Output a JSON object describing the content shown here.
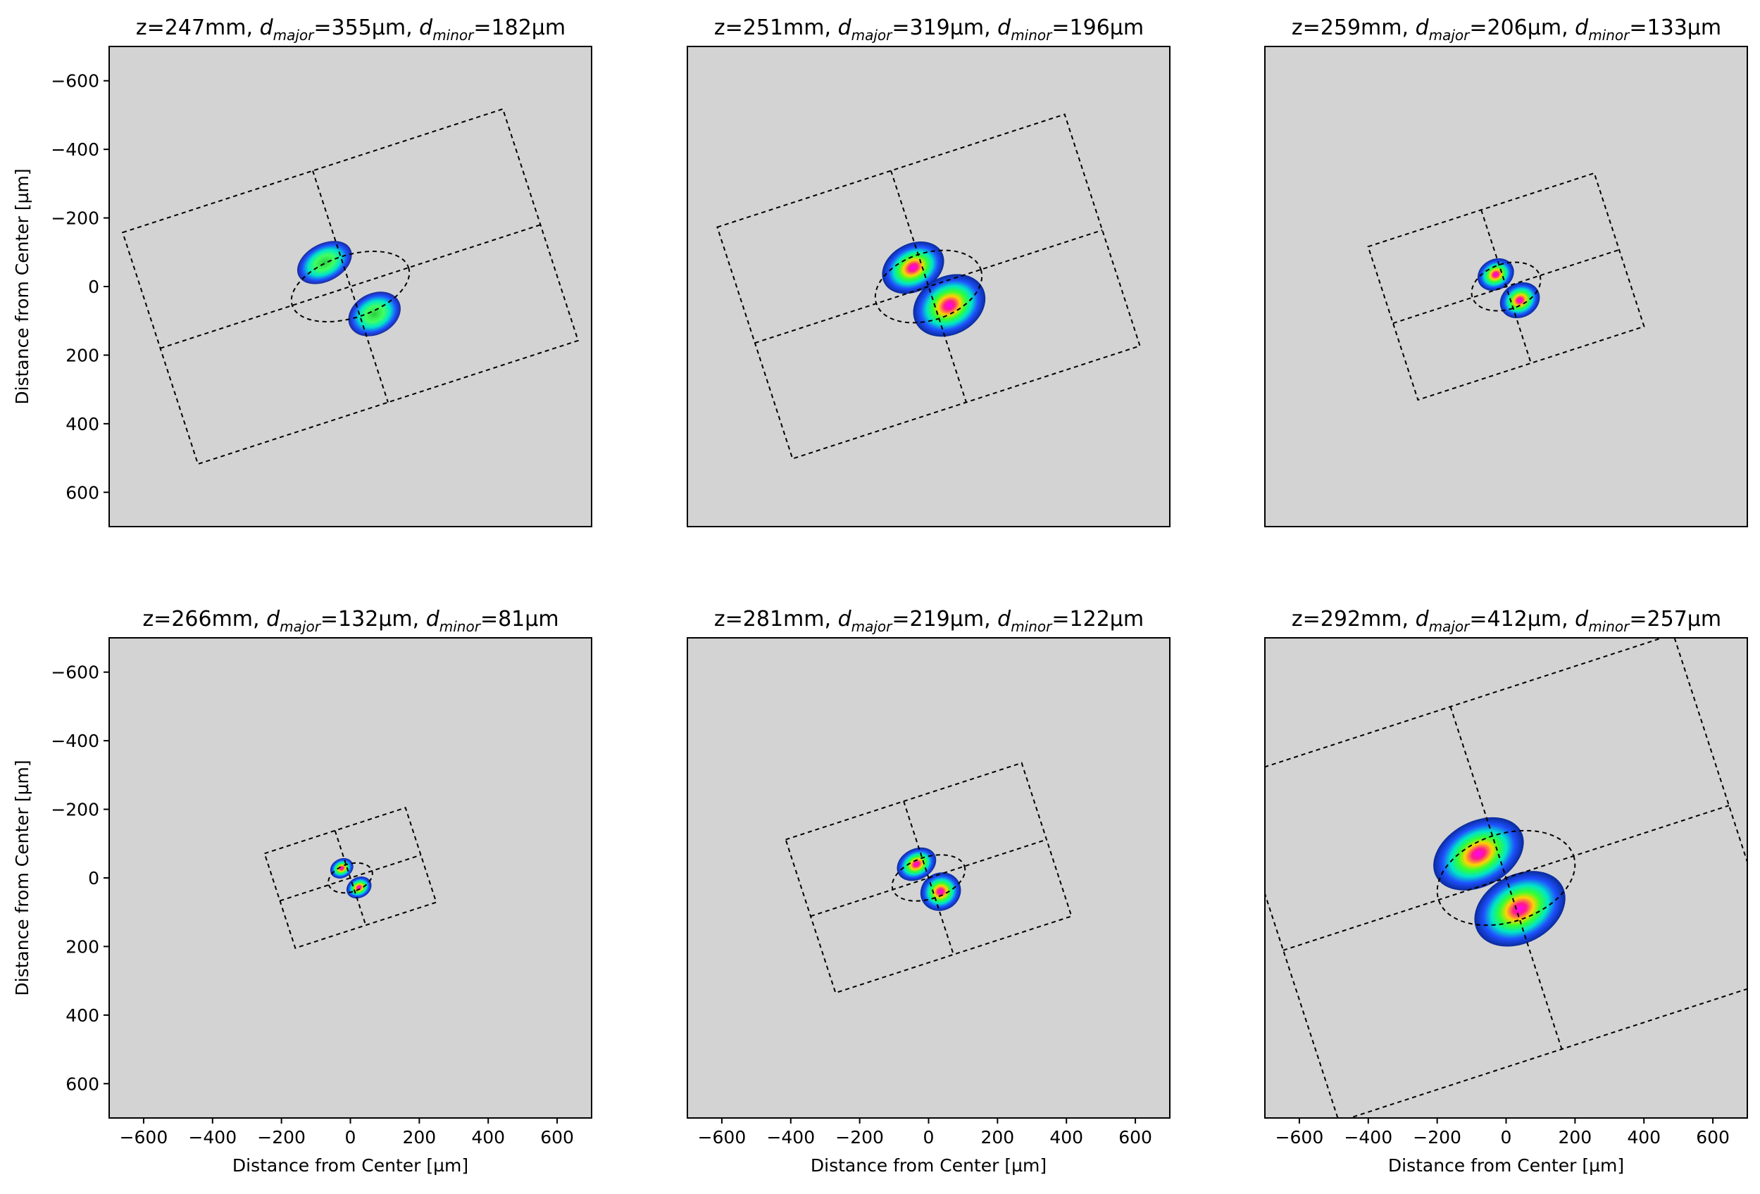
{
  "figure": {
    "xlabel": "Distance from Center [µm]",
    "ylabel": "Distance from Center [µm]"
  },
  "chart_data": [
    {
      "type": "heatmap",
      "title": "z=247mm, d_major=355µm, d_minor=182µm",
      "title_parts": {
        "z": "z=247mm, ",
        "maj_pre": "d",
        "maj_sub": "major",
        "maj_val": "=355µm, ",
        "min_pre": "d",
        "min_sub": "minor",
        "min_val": "=182µm"
      },
      "z_mm": 247,
      "d_major_um": 355,
      "d_minor_um": 182,
      "center_um": [
        0,
        0
      ],
      "angle_deg": -18,
      "rect_half_um": [
        580,
        355
      ],
      "blobs": [
        {
          "x": -75,
          "y": -70,
          "rx": 85,
          "ry": 55,
          "peak": 0.55
        },
        {
          "x": 70,
          "y": 80,
          "rx": 80,
          "ry": 60,
          "peak": 0.55
        }
      ],
      "xlabel": "",
      "ylabel": "Distance from Center [µm]",
      "xlim": [
        -700,
        700
      ],
      "ylim": [
        700,
        -700
      ],
      "xticks": [],
      "yticks": [
        -600,
        -400,
        -200,
        0,
        200,
        400,
        600
      ]
    },
    {
      "type": "heatmap",
      "title": "z=251mm, d_major=319µm, d_minor=196µm",
      "title_parts": {
        "z": "z=251mm, ",
        "maj_pre": "d",
        "maj_sub": "major",
        "maj_val": "=319µm, ",
        "min_pre": "d",
        "min_sub": "minor",
        "min_val": "=196µm"
      },
      "z_mm": 251,
      "d_major_um": 319,
      "d_minor_um": 196,
      "center_um": [
        0,
        0
      ],
      "angle_deg": -18,
      "rect_half_um": [
        530,
        355
      ],
      "blobs": [
        {
          "x": -45,
          "y": -55,
          "rx": 95,
          "ry": 70,
          "peak": 0.85
        },
        {
          "x": 60,
          "y": 55,
          "rx": 110,
          "ry": 85,
          "peak": 0.9
        }
      ],
      "xlabel": "",
      "ylabel": "",
      "xlim": [
        -700,
        700
      ],
      "ylim": [
        700,
        -700
      ],
      "xticks": [],
      "yticks": []
    },
    {
      "type": "heatmap",
      "title": "z=259mm, d_major=206µm, d_minor=133µm",
      "title_parts": {
        "z": "z=259mm, ",
        "maj_pre": "d",
        "maj_sub": "major",
        "maj_val": "=206µm, ",
        "min_pre": "d",
        "min_sub": "minor",
        "min_val": "=133µm"
      },
      "z_mm": 259,
      "d_major_um": 206,
      "d_minor_um": 133,
      "center_um": [
        0,
        0
      ],
      "angle_deg": -18,
      "rect_half_um": [
        345,
        235
      ],
      "blobs": [
        {
          "x": -30,
          "y": -35,
          "rx": 55,
          "ry": 45,
          "peak": 0.85
        },
        {
          "x": 40,
          "y": 40,
          "rx": 60,
          "ry": 50,
          "peak": 0.85
        }
      ],
      "xlabel": "",
      "ylabel": "",
      "xlim": [
        -700,
        700
      ],
      "ylim": [
        700,
        -700
      ],
      "xticks": [],
      "yticks": []
    },
    {
      "type": "heatmap",
      "title": "z=266mm, d_major=132µm, d_minor=81µm",
      "title_parts": {
        "z": "z=266mm, ",
        "maj_pre": "d",
        "maj_sub": "major",
        "maj_val": "=132µm, ",
        "min_pre": "d",
        "min_sub": "minor",
        "min_val": "=81µm"
      },
      "z_mm": 266,
      "d_major_um": 132,
      "d_minor_um": 81,
      "center_um": [
        0,
        0
      ],
      "angle_deg": -18,
      "rect_half_um": [
        215,
        145
      ],
      "blobs": [
        {
          "x": -25,
          "y": -28,
          "rx": 35,
          "ry": 28,
          "peak": 0.9
        },
        {
          "x": 25,
          "y": 28,
          "rx": 38,
          "ry": 30,
          "peak": 0.9
        }
      ],
      "xlabel": "Distance from Center [µm]",
      "ylabel": "Distance from Center [µm]",
      "xlim": [
        -700,
        700
      ],
      "ylim": [
        700,
        -700
      ],
      "xticks": [
        -600,
        -400,
        -200,
        0,
        200,
        400,
        600
      ],
      "yticks": [
        -600,
        -400,
        -200,
        0,
        200,
        400,
        600
      ]
    },
    {
      "type": "heatmap",
      "title": "z=281mm, d_major=219µm, d_minor=122µm",
      "title_parts": {
        "z": "z=281mm, ",
        "maj_pre": "d",
        "maj_sub": "major",
        "maj_val": "=219µm, ",
        "min_pre": "d",
        "min_sub": "minor",
        "min_val": "=122µm"
      },
      "z_mm": 281,
      "d_major_um": 219,
      "d_minor_um": 122,
      "center_um": [
        0,
        0
      ],
      "angle_deg": -18,
      "rect_half_um": [
        360,
        235
      ],
      "blobs": [
        {
          "x": -35,
          "y": -40,
          "rx": 60,
          "ry": 45,
          "peak": 0.85
        },
        {
          "x": 35,
          "y": 40,
          "rx": 60,
          "ry": 55,
          "peak": 0.85
        }
      ],
      "xlabel": "Distance from Center [µm]",
      "ylabel": "",
      "xlim": [
        -700,
        700
      ],
      "ylim": [
        700,
        -700
      ],
      "xticks": [
        -600,
        -400,
        -200,
        0,
        200,
        400,
        600
      ],
      "yticks": []
    },
    {
      "type": "heatmap",
      "title": "z=292mm, d_major=412µm, d_minor=257µm",
      "title_parts": {
        "z": "z=292mm, ",
        "maj_pre": "d",
        "maj_sub": "major",
        "maj_val": "=412µm, ",
        "min_pre": "d",
        "min_sub": "minor",
        "min_val": "=257µm"
      },
      "z_mm": 292,
      "d_major_um": 412,
      "d_minor_um": 257,
      "center_um": [
        0,
        0
      ],
      "angle_deg": -18,
      "rect_half_um": [
        680,
        525
      ],
      "blobs": [
        {
          "x": -80,
          "y": -70,
          "rx": 140,
          "ry": 95,
          "peak": 0.75
        },
        {
          "x": 40,
          "y": 90,
          "rx": 140,
          "ry": 100,
          "peak": 0.8
        }
      ],
      "xlabel": "Distance from Center [µm]",
      "ylabel": "",
      "xlim": [
        -700,
        700
      ],
      "ylim": [
        700,
        -700
      ],
      "xticks": [
        -600,
        -400,
        -200,
        0,
        200,
        400,
        600
      ],
      "yticks": []
    }
  ]
}
